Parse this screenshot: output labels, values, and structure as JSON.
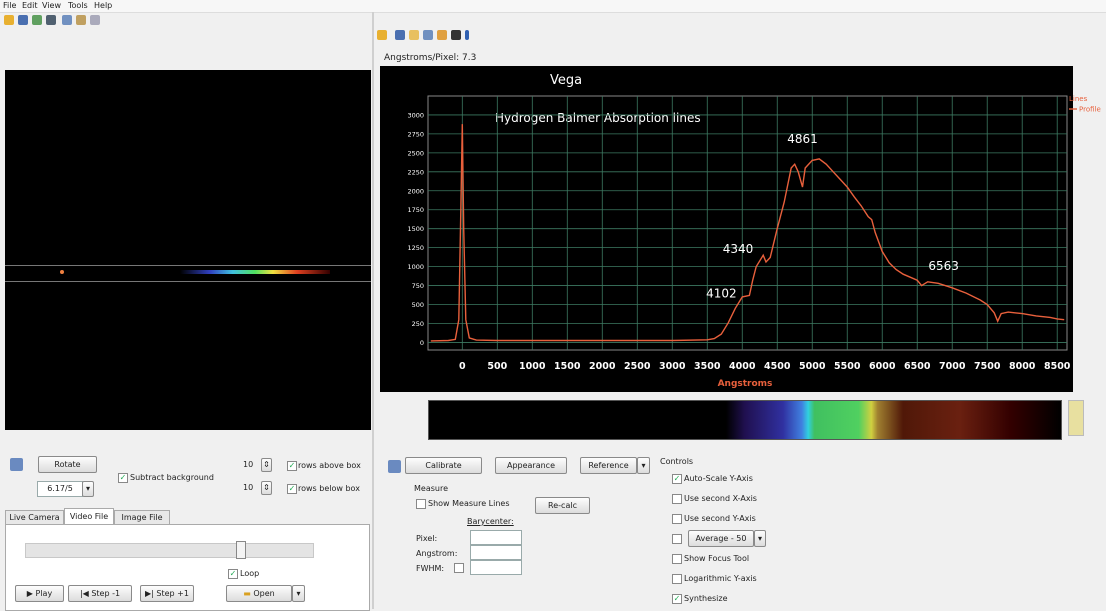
{
  "menu": [
    "File",
    "Edit",
    "View",
    "Tools",
    "Help"
  ],
  "left_panel": {
    "rotate_button": "Rotate",
    "subtract_background": "Subtract background",
    "zoom": "6.17/5",
    "rows_above_value": "10",
    "rows_above_label": "rows above box",
    "rows_below_value": "10",
    "rows_below_label": "rows below box",
    "tabs": [
      "Live Camera",
      "Video File",
      "Image File"
    ],
    "loop": "Loop",
    "play": "Play",
    "step_back": "Step -1",
    "step_forward": "Step +1",
    "open": "Open"
  },
  "right_panel": {
    "scale_label": "Angstroms/Pixel: 7.3",
    "buttons": [
      "Calibrate",
      "Appearance",
      "Reference"
    ],
    "measure": {
      "title": "Measure",
      "show_lines": "Show Measure Lines",
      "recalc": "Re-calc",
      "barycenter": "Barycenter:",
      "pixel": "Pixel:",
      "angstrom": "Angstrom:",
      "fwhm": "FWHM:"
    },
    "controls": {
      "title": "Controls",
      "options": [
        "Auto-Scale Y-Axis",
        "Use second X-Axis",
        "Use second Y-Axis",
        "Average - 50",
        "Show Focus Tool",
        "Logarithmic Y-axis",
        "Synthesize"
      ]
    }
  },
  "chart_data": {
    "type": "line",
    "title": "Vega",
    "annotation": "Hydrogen Balmer Absorption lines",
    "xlabel": "Angstroms",
    "legend_title": "Lines",
    "legend": "upper right",
    "grid": true,
    "grid_color": "#3d7a62",
    "x": [
      -450,
      -200,
      -100,
      -50,
      -20,
      0,
      20,
      50,
      100,
      200,
      500,
      1000,
      1500,
      2000,
      2500,
      3000,
      3500,
      3600,
      3700,
      3800,
      3900,
      4000,
      4102,
      4150,
      4200,
      4300,
      4340,
      4400,
      4500,
      4600,
      4700,
      4750,
      4800,
      4861,
      4900,
      5000,
      5100,
      5200,
      5300,
      5400,
      5500,
      5600,
      5700,
      5800,
      5850,
      5900,
      6000,
      6100,
      6200,
      6300,
      6400,
      6500,
      6563,
      6650,
      6800,
      7000,
      7200,
      7400,
      7500,
      7600,
      7650,
      7700,
      7800,
      8000,
      8200,
      8400,
      8500,
      8600
    ],
    "series": [
      {
        "name": "Profile",
        "color": "#e8603c",
        "values": [
          20,
          25,
          40,
          300,
          1800,
          2880,
          1500,
          300,
          60,
          30,
          25,
          25,
          25,
          25,
          25,
          25,
          35,
          50,
          110,
          260,
          450,
          600,
          620,
          820,
          1000,
          1150,
          1060,
          1120,
          1500,
          1850,
          2300,
          2350,
          2250,
          2050,
          2300,
          2400,
          2420,
          2350,
          2250,
          2150,
          2050,
          1920,
          1800,
          1660,
          1620,
          1450,
          1200,
          1050,
          960,
          900,
          860,
          820,
          750,
          800,
          780,
          720,
          650,
          560,
          500,
          390,
          280,
          380,
          400,
          380,
          350,
          330,
          310,
          300
        ]
      }
    ],
    "annotations": [
      {
        "text": "4102",
        "x": 4102,
        "y": 590
      },
      {
        "text": "4340",
        "x": 4340,
        "y": 1180
      },
      {
        "text": "4861",
        "x": 4861,
        "y": 2630
      },
      {
        "text": "6563",
        "x": 6563,
        "y": 955
      }
    ],
    "xlim": [
      -490,
      8640
    ],
    "ylim": [
      -100,
      3250
    ],
    "xticks": [
      0,
      500,
      1000,
      1500,
      2000,
      2500,
      3000,
      3500,
      4000,
      4500,
      5000,
      5500,
      6000,
      6500,
      7000,
      7500,
      8000,
      8500
    ],
    "yticks": [
      0,
      250,
      500,
      750,
      1000,
      1250,
      1500,
      1750,
      2000,
      2250,
      2500,
      2750,
      3000
    ]
  }
}
